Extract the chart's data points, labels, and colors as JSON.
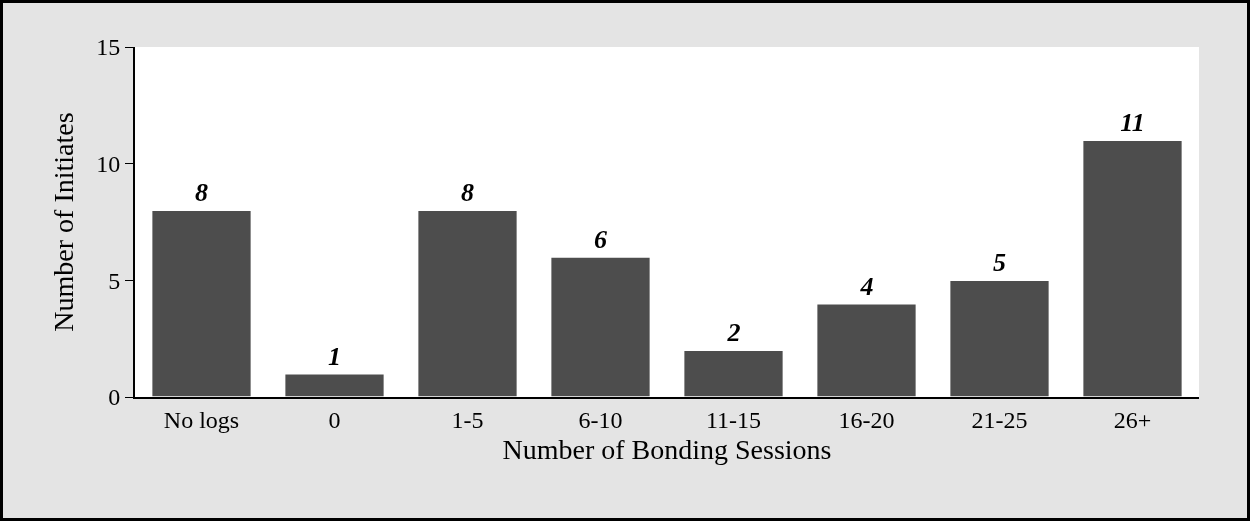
{
  "chart_data": {
    "type": "bar",
    "xlabel": "Number of Bonding Sessions",
    "ylabel": "Number of Initiates",
    "categories": [
      "No logs",
      "0",
      "1-5",
      "6-10",
      "11-15",
      "16-20",
      "21-25",
      "26+"
    ],
    "values": [
      8,
      1,
      8,
      6,
      2,
      4,
      5,
      11
    ],
    "color": "#4d4d4d",
    "ylim": [
      0,
      15
    ],
    "yticks": [
      0,
      5,
      10,
      15
    ],
    "grid": false,
    "data_labels": true
  }
}
